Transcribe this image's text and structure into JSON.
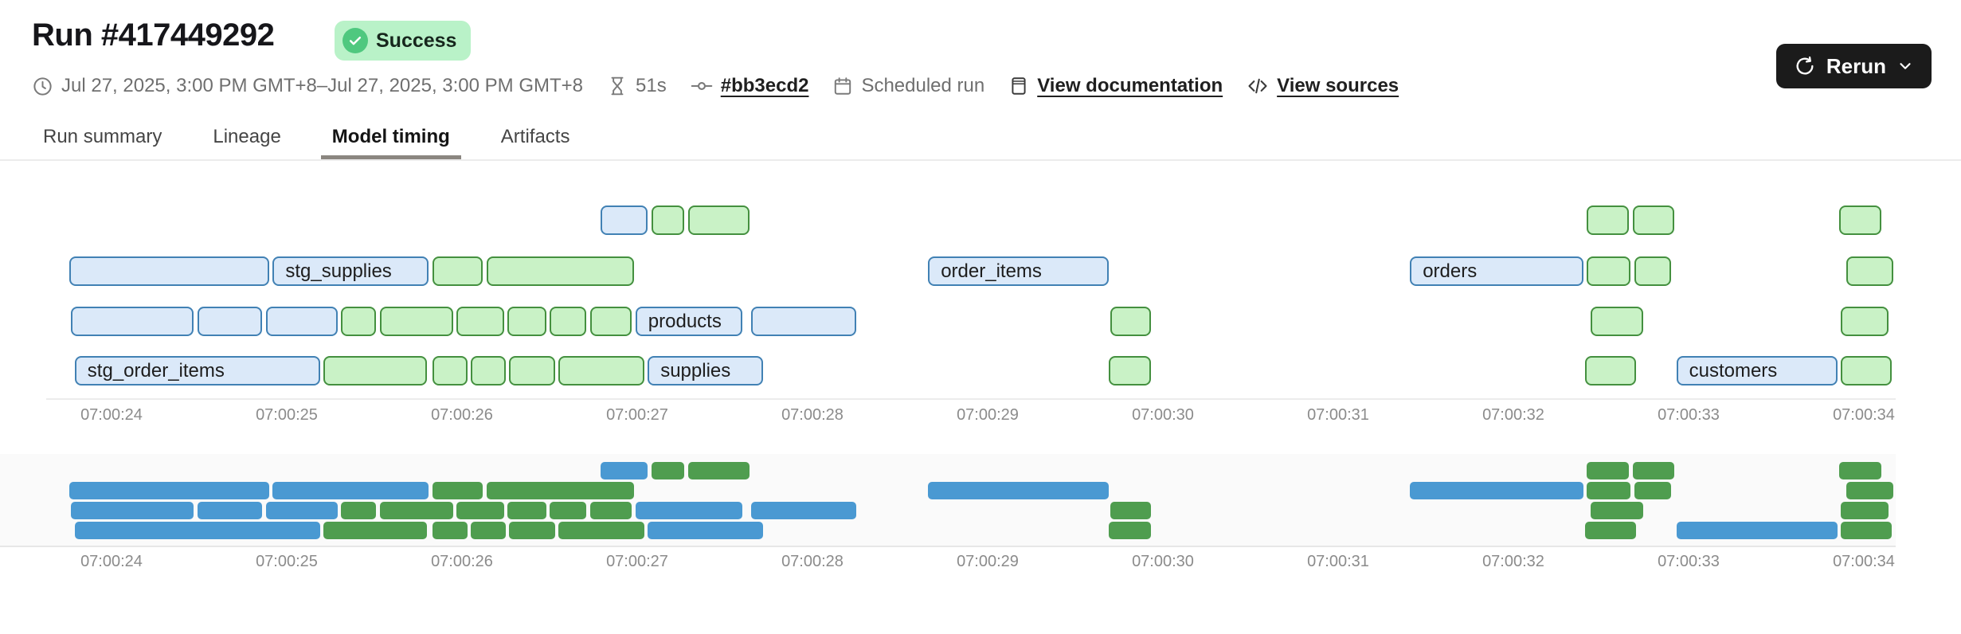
{
  "page": {
    "title": "Run #417449292"
  },
  "status_badge": {
    "label": "Success"
  },
  "meta": {
    "date_range": "Jul 27, 2025, 3:00 PM GMT+8–Jul 27, 2025, 3:00 PM GMT+8",
    "duration": "51s",
    "commit": "#bb3ecd2",
    "trigger": "Scheduled run",
    "documentation_link": "View documentation",
    "sources_link": "View sources"
  },
  "rerun": {
    "label": "Rerun"
  },
  "tabs": [
    {
      "label": "Run summary",
      "active": false
    },
    {
      "label": "Lineage",
      "active": false
    },
    {
      "label": "Model timing",
      "active": true
    },
    {
      "label": "Artifacts",
      "active": false
    }
  ],
  "colors": {
    "success_badge_bg": "#b9f2c8",
    "success_icon": "#4fc87f",
    "bar_blue_fill": "#dbe9f9",
    "bar_blue_border": "#4181b4",
    "bar_green_fill": "#c9f2c6",
    "bar_green_border": "#44903f",
    "minimap_blue": "#4a99d2",
    "minimap_green": "#4f9d4f",
    "rerun_button_bg": "#1b1b1b"
  },
  "chart_data": {
    "type": "gantt",
    "title": "Model timing",
    "description": "dbt model execution timeline; identical bars drawn twice: detail chart (outlined pastel bars, some labeled) and minimap below (solid bars)",
    "time_axis": {
      "tick_labels": [
        "07:00:24",
        "07:00:25",
        "07:00:26",
        "07:00:27",
        "07:00:28",
        "07:00:29",
        "07:00:30",
        "07:00:31",
        "07:00:32",
        "07:00:33",
        "07:00:34"
      ],
      "tick_seconds": [
        24,
        25,
        26,
        27,
        28,
        29,
        30,
        31,
        32,
        33,
        34
      ]
    },
    "rows": [
      [
        {
          "color": "blue",
          "start": 26.79,
          "end": 27.06
        },
        {
          "color": "green",
          "start": 27.08,
          "end": 27.27
        },
        {
          "color": "green",
          "start": 27.29,
          "end": 27.64
        },
        {
          "color": "green",
          "start": 32.42,
          "end": 32.66
        },
        {
          "color": "green",
          "start": 32.68,
          "end": 32.92
        },
        {
          "color": "green",
          "start": 33.86,
          "end": 34.1
        }
      ],
      [
        {
          "color": "blue",
          "start": 23.76,
          "end": 24.9
        },
        {
          "color": "blue",
          "start": 24.92,
          "end": 25.81,
          "label": "stg_supplies"
        },
        {
          "color": "green",
          "start": 25.83,
          "end": 26.12
        },
        {
          "color": "green",
          "start": 26.14,
          "end": 26.98
        },
        {
          "color": "blue",
          "start": 28.66,
          "end": 29.69,
          "label": "order_items"
        },
        {
          "color": "blue",
          "start": 31.41,
          "end": 32.4,
          "label": "orders"
        },
        {
          "color": "green",
          "start": 32.42,
          "end": 32.67
        },
        {
          "color": "green",
          "start": 32.69,
          "end": 32.9
        },
        {
          "color": "green",
          "start": 33.9,
          "end": 34.17
        }
      ],
      [
        {
          "color": "blue",
          "start": 23.77,
          "end": 24.47
        },
        {
          "color": "blue",
          "start": 24.49,
          "end": 24.86
        },
        {
          "color": "blue",
          "start": 24.88,
          "end": 25.29
        },
        {
          "color": "green",
          "start": 25.31,
          "end": 25.51
        },
        {
          "color": "green",
          "start": 25.53,
          "end": 25.95
        },
        {
          "color": "green",
          "start": 25.97,
          "end": 26.24
        },
        {
          "color": "green",
          "start": 26.26,
          "end": 26.48
        },
        {
          "color": "green",
          "start": 26.5,
          "end": 26.71
        },
        {
          "color": "green",
          "start": 26.73,
          "end": 26.97
        },
        {
          "color": "blue",
          "start": 26.99,
          "end": 27.6,
          "label": "products"
        },
        {
          "color": "blue",
          "start": 27.65,
          "end": 28.25
        },
        {
          "color": "green",
          "start": 29.7,
          "end": 29.93
        },
        {
          "color": "green",
          "start": 32.44,
          "end": 32.74
        },
        {
          "color": "green",
          "start": 33.87,
          "end": 34.14
        }
      ],
      [
        {
          "color": "blue",
          "start": 23.79,
          "end": 25.19,
          "label": "stg_order_items"
        },
        {
          "color": "green",
          "start": 25.21,
          "end": 25.8
        },
        {
          "color": "green",
          "start": 25.83,
          "end": 26.03
        },
        {
          "color": "green",
          "start": 26.05,
          "end": 26.25
        },
        {
          "color": "green",
          "start": 26.27,
          "end": 26.53
        },
        {
          "color": "green",
          "start": 26.55,
          "end": 27.04
        },
        {
          "color": "blue",
          "start": 27.06,
          "end": 27.72,
          "label": "supplies"
        },
        {
          "color": "green",
          "start": 29.69,
          "end": 29.93
        },
        {
          "color": "green",
          "start": 32.41,
          "end": 32.7
        },
        {
          "color": "blue",
          "start": 32.93,
          "end": 33.85,
          "label": "customers"
        },
        {
          "color": "green",
          "start": 33.87,
          "end": 34.16
        }
      ]
    ]
  }
}
